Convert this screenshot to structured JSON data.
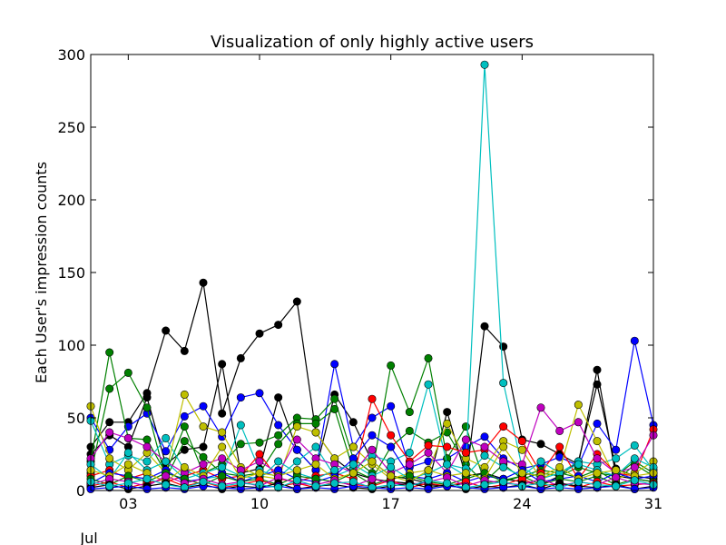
{
  "chart_data": {
    "type": "line",
    "title": "Visualization of only highly active users",
    "xlabel": "",
    "ylabel": "Each User's impression counts",
    "x_month_label": "Jul",
    "xlim": [
      1,
      31
    ],
    "ylim": [
      0,
      300
    ],
    "x_ticks": [
      {
        "value": 3,
        "label": "03"
      },
      {
        "value": 10,
        "label": "10"
      },
      {
        "value": 17,
        "label": "17"
      },
      {
        "value": 24,
        "label": "24"
      },
      {
        "value": 31,
        "label": "31"
      }
    ],
    "y_ticks": [
      {
        "value": 0,
        "label": "0"
      },
      {
        "value": 50,
        "label": "50"
      },
      {
        "value": 100,
        "label": "100"
      },
      {
        "value": 150,
        "label": "150"
      },
      {
        "value": 200,
        "label": "200"
      },
      {
        "value": 250,
        "label": "250"
      },
      {
        "value": 300,
        "label": "300"
      }
    ],
    "grid": false,
    "legend": "none",
    "series": [
      {
        "color": "#000000",
        "x": [
          1,
          2,
          3,
          4,
          5,
          6,
          7,
          8,
          9,
          10,
          11,
          12,
          13,
          14,
          15,
          16,
          17,
          18,
          19,
          20,
          21,
          22,
          23,
          24,
          25,
          26,
          27,
          28,
          29,
          30,
          31
        ],
        "values": [
          30,
          47,
          47,
          67,
          110,
          96,
          143,
          53,
          91,
          108,
          114,
          130,
          40,
          22,
          12,
          8,
          6,
          5,
          4,
          3,
          5,
          113,
          99,
          35,
          32,
          25,
          18,
          83,
          10,
          8,
          6
        ]
      },
      {
        "color": "#000000",
        "x": [
          1,
          2,
          3,
          4,
          5,
          6,
          7,
          8,
          9,
          10,
          11,
          12,
          13,
          14,
          15,
          16,
          17,
          18,
          19,
          20,
          21,
          22,
          23,
          24,
          25,
          26,
          27,
          28,
          29,
          30,
          31
        ],
        "values": [
          25,
          38,
          30,
          64,
          18,
          28,
          30,
          87,
          12,
          15,
          64,
          28,
          14,
          66,
          47,
          20,
          10,
          8,
          5,
          54,
          10,
          12,
          8,
          6,
          4,
          10,
          20,
          73,
          15,
          10,
          8
        ]
      },
      {
        "color": "#0000ff",
        "x": [
          1,
          2,
          3,
          4,
          5,
          6,
          7,
          8,
          9,
          10,
          11,
          12,
          13,
          14,
          15,
          16,
          17,
          18,
          19,
          20,
          21,
          22,
          23,
          24,
          25,
          26,
          27,
          28,
          29,
          30,
          31
        ],
        "values": [
          50,
          28,
          44,
          53,
          27,
          51,
          58,
          37,
          64,
          67,
          45,
          28,
          14,
          87,
          30,
          50,
          58,
          16,
          20,
          22,
          30,
          37,
          22,
          15,
          18,
          23,
          17,
          46,
          28,
          103,
          45
        ]
      },
      {
        "color": "#008000",
        "x": [
          1,
          2,
          3,
          4,
          5,
          6,
          7,
          8,
          9,
          10,
          11,
          12,
          13,
          14,
          15,
          16,
          17,
          18,
          19,
          20,
          21,
          22,
          23,
          24,
          25,
          26,
          27,
          28,
          29,
          30,
          31
        ],
        "values": [
          20,
          95,
          36,
          35,
          12,
          44,
          12,
          18,
          32,
          33,
          38,
          50,
          49,
          63,
          22,
          12,
          86,
          54,
          91,
          22,
          44,
          6,
          18,
          8,
          12,
          10,
          16,
          12,
          10,
          20,
          12
        ]
      },
      {
        "color": "#008000",
        "x": [
          1,
          2,
          3,
          4,
          5,
          6,
          7,
          8,
          9,
          10,
          11,
          12,
          13,
          14,
          15,
          16,
          17,
          18,
          19,
          20,
          21,
          22,
          23,
          24,
          25,
          26,
          27,
          28,
          29,
          30,
          31
        ],
        "values": [
          12,
          70,
          81,
          57,
          8,
          34,
          23,
          12,
          10,
          12,
          32,
          46,
          46,
          56,
          14,
          8,
          30,
          41,
          33,
          40,
          18,
          5,
          7,
          10,
          14,
          12,
          9,
          14,
          6,
          18,
          10
        ]
      },
      {
        "color": "#00bfbf",
        "x": [
          1,
          2,
          3,
          4,
          5,
          6,
          7,
          8,
          9,
          10,
          11,
          12,
          13,
          14,
          15,
          16,
          17,
          18,
          19,
          20,
          21,
          22,
          23,
          24,
          25,
          26,
          27,
          28,
          29,
          30,
          31
        ],
        "values": [
          48,
          18,
          24,
          20,
          36,
          14,
          8,
          10,
          45,
          14,
          9,
          20,
          30,
          10,
          15,
          24,
          20,
          26,
          73,
          18,
          15,
          293,
          74,
          16,
          8,
          12,
          20,
          18,
          22,
          31,
          14
        ]
      },
      {
        "color": "#bfbf00",
        "x": [
          1,
          2,
          3,
          4,
          5,
          6,
          7,
          8,
          9,
          10,
          11,
          12,
          13,
          14,
          15,
          16,
          17,
          18,
          19,
          20,
          21,
          22,
          23,
          24,
          25,
          26,
          27,
          28,
          29,
          30,
          31
        ],
        "values": [
          58,
          22,
          14,
          26,
          12,
          66,
          44,
          40,
          16,
          10,
          8,
          44,
          40,
          22,
          30,
          18,
          8,
          12,
          14,
          46,
          22,
          16,
          34,
          28,
          8,
          14,
          59,
          34,
          8,
          12,
          20
        ]
      },
      {
        "color": "#ff0000",
        "x": [
          1,
          2,
          3,
          4,
          5,
          6,
          7,
          8,
          9,
          10,
          11,
          12,
          13,
          14,
          15,
          16,
          17,
          18,
          19,
          20,
          21,
          22,
          23,
          24,
          25,
          26,
          27,
          28,
          29,
          30,
          31
        ],
        "values": [
          10,
          14,
          8,
          12,
          6,
          10,
          14,
          8,
          10,
          25,
          8,
          6,
          10,
          12,
          8,
          63,
          38,
          20,
          31,
          30,
          26,
          28,
          44,
          34,
          12,
          30,
          8,
          25,
          12,
          10,
          42
        ]
      },
      {
        "color": "#bf00bf",
        "x": [
          1,
          2,
          3,
          4,
          5,
          6,
          7,
          8,
          9,
          10,
          11,
          12,
          13,
          14,
          15,
          16,
          17,
          18,
          19,
          20,
          21,
          22,
          23,
          24,
          25,
          26,
          27,
          28,
          29,
          30,
          31
        ],
        "values": [
          22,
          40,
          36,
          30,
          20,
          12,
          18,
          22,
          14,
          20,
          12,
          35,
          22,
          18,
          12,
          28,
          12,
          18,
          26,
          12,
          35,
          30,
          20,
          18,
          57,
          41,
          47,
          22,
          12,
          16,
          38
        ]
      },
      {
        "color": "#0000ff",
        "x": [
          1,
          2,
          3,
          4,
          5,
          6,
          7,
          8,
          9,
          10,
          11,
          12,
          13,
          14,
          15,
          16,
          17,
          18,
          19,
          20,
          21,
          22,
          23,
          24,
          25,
          26,
          27,
          28,
          29,
          30,
          31
        ],
        "values": [
          5,
          12,
          10,
          8,
          14,
          6,
          8,
          12,
          6,
          10,
          14,
          8,
          6,
          10,
          22,
          38,
          30,
          10,
          8,
          12,
          6,
          10,
          8,
          14,
          6,
          8,
          10,
          6,
          12,
          8,
          10
        ]
      },
      {
        "color": "#00bfbf",
        "x": [
          1,
          2,
          3,
          4,
          5,
          6,
          7,
          8,
          9,
          10,
          11,
          12,
          13,
          14,
          15,
          16,
          17,
          18,
          19,
          20,
          21,
          22,
          23,
          24,
          25,
          26,
          27,
          28,
          29,
          30,
          31
        ],
        "values": [
          18,
          8,
          26,
          14,
          20,
          8,
          12,
          16,
          10,
          8,
          20,
          12,
          8,
          14,
          18,
          10,
          16,
          8,
          12,
          18,
          10,
          24,
          16,
          10,
          20,
          12,
          18,
          14,
          10,
          22,
          16
        ]
      },
      {
        "color": "#008000",
        "x": [
          1,
          2,
          3,
          4,
          5,
          6,
          7,
          8,
          9,
          10,
          11,
          12,
          13,
          14,
          15,
          16,
          17,
          18,
          19,
          20,
          21,
          22,
          23,
          24,
          25,
          26,
          27,
          28,
          29,
          30,
          31
        ],
        "values": [
          8,
          4,
          10,
          6,
          12,
          8,
          4,
          10,
          6,
          8,
          4,
          10,
          8,
          6,
          12,
          4,
          8,
          10,
          6,
          4,
          8,
          12,
          6,
          10,
          4,
          8,
          6,
          10,
          4,
          8,
          6
        ]
      },
      {
        "color": "#ff0000",
        "x": [
          1,
          2,
          3,
          4,
          5,
          6,
          7,
          8,
          9,
          10,
          11,
          12,
          13,
          14,
          15,
          16,
          17,
          18,
          19,
          20,
          21,
          22,
          23,
          24,
          25,
          26,
          27,
          28,
          29,
          30,
          31
        ],
        "values": [
          3,
          6,
          2,
          5,
          8,
          3,
          6,
          2,
          4,
          7,
          3,
          5,
          2,
          6,
          4,
          3,
          7,
          2,
          5,
          3,
          6,
          2,
          4,
          8,
          3,
          5,
          2,
          6,
          3,
          4,
          5
        ]
      },
      {
        "color": "#bfbf00",
        "x": [
          1,
          2,
          3,
          4,
          5,
          6,
          7,
          8,
          9,
          10,
          11,
          12,
          13,
          14,
          15,
          16,
          17,
          18,
          19,
          20,
          21,
          22,
          23,
          24,
          25,
          26,
          27,
          28,
          29,
          30,
          31
        ],
        "values": [
          14,
          10,
          18,
          12,
          6,
          16,
          10,
          30,
          8,
          12,
          10,
          14,
          18,
          8,
          12,
          20,
          10,
          6,
          14,
          10,
          12,
          8,
          30,
          12,
          10,
          16,
          8,
          12,
          14,
          10,
          12
        ]
      },
      {
        "color": "#bf00bf",
        "x": [
          1,
          2,
          3,
          4,
          5,
          6,
          7,
          8,
          9,
          10,
          11,
          12,
          13,
          14,
          15,
          16,
          17,
          18,
          19,
          20,
          21,
          22,
          23,
          24,
          25,
          26,
          27,
          28,
          29,
          30,
          31
        ],
        "values": [
          4,
          8,
          6,
          3,
          10,
          5,
          8,
          4,
          6,
          3,
          9,
          5,
          4,
          7,
          3,
          8,
          5,
          4,
          6,
          9,
          3,
          7,
          5,
          4,
          8,
          3,
          6,
          4,
          9,
          5,
          4
        ]
      },
      {
        "color": "#000000",
        "x": [
          1,
          2,
          3,
          4,
          5,
          6,
          7,
          8,
          9,
          10,
          11,
          12,
          13,
          14,
          15,
          16,
          17,
          18,
          19,
          20,
          21,
          22,
          23,
          24,
          25,
          26,
          27,
          28,
          29,
          30,
          31
        ],
        "values": [
          2,
          4,
          1,
          3,
          5,
          2,
          4,
          1,
          3,
          2,
          5,
          1,
          3,
          4,
          2,
          1,
          3,
          5,
          2,
          4,
          1,
          3,
          2,
          4,
          1,
          5,
          3,
          2,
          4,
          1,
          3
        ]
      },
      {
        "color": "#0000ff",
        "x": [
          1,
          2,
          3,
          4,
          5,
          6,
          7,
          8,
          9,
          10,
          11,
          12,
          13,
          14,
          15,
          16,
          17,
          18,
          19,
          20,
          21,
          22,
          23,
          24,
          25,
          26,
          27,
          28,
          29,
          30,
          31
        ],
        "values": [
          1,
          2,
          3,
          1,
          2,
          1,
          3,
          2,
          1,
          2,
          3,
          1,
          2,
          1,
          3,
          2,
          1,
          2,
          1,
          3,
          2,
          1,
          2,
          3,
          1,
          2,
          1,
          2,
          3,
          1,
          2
        ]
      },
      {
        "color": "#00bfbf",
        "x": [
          1,
          2,
          3,
          4,
          5,
          6,
          7,
          8,
          9,
          10,
          11,
          12,
          13,
          14,
          15,
          16,
          17,
          18,
          19,
          20,
          21,
          22,
          23,
          24,
          25,
          26,
          27,
          28,
          29,
          30,
          31
        ],
        "values": [
          6,
          3,
          5,
          8,
          4,
          2,
          6,
          3,
          5,
          4,
          2,
          7,
          3,
          5,
          6,
          2,
          4,
          3,
          7,
          5,
          2,
          4,
          6,
          3,
          5,
          2,
          6,
          4,
          3,
          7,
          4
        ]
      }
    ]
  }
}
